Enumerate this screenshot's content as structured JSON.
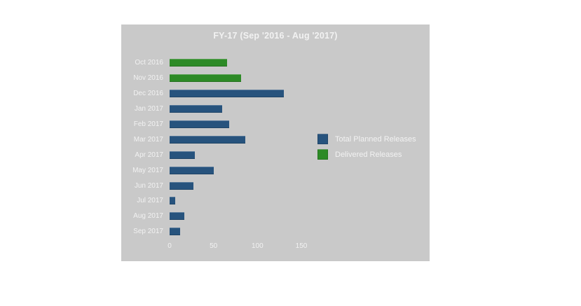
{
  "chart_data": {
    "type": "bar",
    "orientation": "horizontal",
    "title": "FY-17 (Sep '2016 - Aug '2017)",
    "categories": [
      "Oct 2016",
      "Nov 2016",
      "Dec 2016",
      "Jan 2017",
      "Feb 2017",
      "Mar 2017",
      "Apr 2017",
      "May 2017",
      "Jun 2017",
      "Jul 2017",
      "Aug 2017",
      "Sep 2017"
    ],
    "values": [
      65,
      81,
      130,
      60,
      68,
      86,
      29,
      50,
      27,
      6,
      17,
      12
    ],
    "bar_series": [
      "Delivered Releases",
      "Delivered Releases",
      "Total Planned Releases",
      "Total Planned Releases",
      "Total Planned Releases",
      "Total Planned Releases",
      "Total Planned Releases",
      "Total Planned Releases",
      "Total Planned Releases",
      "Total Planned Releases",
      "Total Planned Releases",
      "Total Planned Releases"
    ],
    "x_ticks": [
      0,
      50,
      100,
      150
    ],
    "xlim": [
      0,
      150
    ],
    "grid": false,
    "xlabel": "",
    "ylabel": "",
    "legend": {
      "position": "right",
      "entries": [
        {
          "label": "Total Planned Releases",
          "color": "#27537d"
        },
        {
          "label": "Delivered Releases",
          "color": "#2d8a26"
        }
      ]
    },
    "colors": {
      "plot_background": "#c9c9c9",
      "page_background": "#ffffff",
      "text": "#f2f2f2"
    }
  }
}
